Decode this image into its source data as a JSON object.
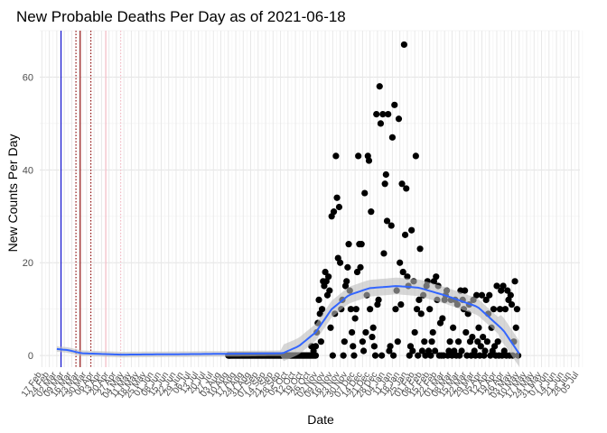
{
  "chart_data": {
    "type": "scatter",
    "title": "New Probable Deaths Per Day as of 2021-06-18",
    "xlabel": "Date",
    "ylabel": "New Counts Per Day",
    "xlim": [
      "2020-02-15",
      "2021-07-06"
    ],
    "ylim": [
      -2.5,
      70
    ],
    "y_ticks": [
      0,
      20,
      40,
      60
    ],
    "grid": true,
    "x_tick_labels": [
      "17 Feb",
      "24 Feb",
      "02 Mar",
      "09 Mar",
      "16 Mar",
      "23 Mar",
      "30 Mar",
      "06 Apr",
      "13 Apr",
      "20 Apr",
      "27 Apr",
      "04 May",
      "11 May",
      "18 May",
      "25 May",
      "01 Jun",
      "08 Jun",
      "15 Jun",
      "22 Jun",
      "29 Jun",
      "06 Jul",
      "13 Jul",
      "20 Jul",
      "27 Jul",
      "03 Aug",
      "10 Aug",
      "17 Aug",
      "24 Aug",
      "31 Aug",
      "07 Sep",
      "14 Sep",
      "21 Sep",
      "28 Sep",
      "05 Oct",
      "12 Oct",
      "19 Oct",
      "26 Oct",
      "02 Nov",
      "09 Nov",
      "16 Nov",
      "23 Nov",
      "30 Nov",
      "07 Dec",
      "14 Dec",
      "21 Dec",
      "28 Dec",
      "04 Jan",
      "11 Jan",
      "18 Jan",
      "25 Jan",
      "01 Feb",
      "08 Feb",
      "15 Feb",
      "22 Feb",
      "01 Mar",
      "08 Mar",
      "15 Mar",
      "22 Mar",
      "29 Mar",
      "05 Apr",
      "12 Apr",
      "19 Apr",
      "26 Apr",
      "03 May",
      "10 May",
      "17 May",
      "24 May",
      "31 May",
      "07 Jun",
      "14 Jun",
      "21 Jun",
      "28 Jun",
      "05 Jul"
    ],
    "vertical_lines": [
      {
        "date": "2020-03-06",
        "color": "#0000cc",
        "style": "solid"
      },
      {
        "date": "2020-03-20",
        "color": "#8b0000",
        "style": "dotted"
      },
      {
        "date": "2020-03-24",
        "color": "#8b0000",
        "style": "solid"
      },
      {
        "date": "2020-04-03",
        "color": "#8b0000",
        "style": "dotted"
      },
      {
        "date": "2020-04-17",
        "color": "#f4b6c2",
        "style": "solid"
      },
      {
        "date": "2020-05-01",
        "color": "#f4b6c2",
        "style": "dotted"
      }
    ],
    "point_color": "#000000",
    "smooth_color": "#3366ff",
    "band_color": "#bdbdbd",
    "points_early": {
      "start": "2020-08-10",
      "end": "2020-10-31",
      "value": 0
    },
    "points": [
      [
        "2020-10-27",
        2
      ],
      [
        "2020-10-29",
        1
      ],
      [
        "2020-10-31",
        2
      ],
      [
        "2020-11-01",
        5
      ],
      [
        "2020-11-02",
        7
      ],
      [
        "2020-11-03",
        12
      ],
      [
        "2020-11-04",
        9
      ],
      [
        "2020-11-05",
        3
      ],
      [
        "2020-11-06",
        10
      ],
      [
        "2020-11-07",
        16
      ],
      [
        "2020-11-08",
        15
      ],
      [
        "2020-11-09",
        18
      ],
      [
        "2020-11-10",
        16
      ],
      [
        "2020-11-11",
        13
      ],
      [
        "2020-11-12",
        17
      ],
      [
        "2020-11-13",
        14
      ],
      [
        "2020-11-14",
        6
      ],
      [
        "2020-11-15",
        30
      ],
      [
        "2020-11-16",
        0
      ],
      [
        "2020-11-17",
        31
      ],
      [
        "2020-11-18",
        9
      ],
      [
        "2020-11-19",
        43
      ],
      [
        "2020-11-20",
        34
      ],
      [
        "2020-11-21",
        21
      ],
      [
        "2020-11-22",
        32
      ],
      [
        "2020-11-23",
        20
      ],
      [
        "2020-11-24",
        10
      ],
      [
        "2020-11-25",
        12
      ],
      [
        "2020-11-26",
        0
      ],
      [
        "2020-11-27",
        3
      ],
      [
        "2020-11-28",
        15
      ],
      [
        "2020-11-29",
        16
      ],
      [
        "2020-11-30",
        19
      ],
      [
        "2020-12-01",
        24
      ],
      [
        "2020-12-02",
        14
      ],
      [
        "2020-12-03",
        10
      ],
      [
        "2020-12-04",
        5
      ],
      [
        "2020-12-05",
        2
      ],
      [
        "2020-12-06",
        0
      ],
      [
        "2020-12-07",
        8
      ],
      [
        "2020-12-08",
        10
      ],
      [
        "2020-12-09",
        18
      ],
      [
        "2020-12-10",
        43
      ],
      [
        "2020-12-11",
        24
      ],
      [
        "2020-12-12",
        19
      ],
      [
        "2020-12-13",
        24
      ],
      [
        "2020-12-14",
        3
      ],
      [
        "2020-12-15",
        1
      ],
      [
        "2020-12-16",
        35
      ],
      [
        "2020-12-17",
        5
      ],
      [
        "2020-12-18",
        13
      ],
      [
        "2020-12-19",
        43
      ],
      [
        "2020-12-20",
        42
      ],
      [
        "2020-12-21",
        10
      ],
      [
        "2020-12-22",
        31
      ],
      [
        "2020-12-23",
        4
      ],
      [
        "2020-12-24",
        6
      ],
      [
        "2020-12-25",
        2
      ],
      [
        "2020-12-26",
        0
      ],
      [
        "2020-12-27",
        52
      ],
      [
        "2020-12-28",
        11
      ],
      [
        "2020-12-29",
        12
      ],
      [
        "2020-12-30",
        58
      ],
      [
        "2020-12-31",
        50
      ],
      [
        "2021-01-01",
        0
      ],
      [
        "2021-01-02",
        52
      ],
      [
        "2021-01-03",
        22
      ],
      [
        "2021-01-04",
        37
      ],
      [
        "2021-01-05",
        39
      ],
      [
        "2021-01-06",
        29
      ],
      [
        "2021-01-07",
        52
      ],
      [
        "2021-01-08",
        1
      ],
      [
        "2021-01-09",
        2
      ],
      [
        "2021-01-10",
        28
      ],
      [
        "2021-01-11",
        47
      ],
      [
        "2021-01-12",
        0
      ],
      [
        "2021-01-13",
        54
      ],
      [
        "2021-01-14",
        10
      ],
      [
        "2021-01-15",
        14
      ],
      [
        "2021-01-16",
        3
      ],
      [
        "2021-01-17",
        51
      ],
      [
        "2021-01-18",
        20
      ],
      [
        "2021-01-19",
        11
      ],
      [
        "2021-01-20",
        37
      ],
      [
        "2021-01-21",
        18
      ],
      [
        "2021-01-22",
        67
      ],
      [
        "2021-01-23",
        26
      ],
      [
        "2021-01-24",
        36
      ],
      [
        "2021-01-25",
        17
      ],
      [
        "2021-01-26",
        15
      ],
      [
        "2021-01-27",
        0
      ],
      [
        "2021-01-28",
        2
      ],
      [
        "2021-01-29",
        27
      ],
      [
        "2021-01-30",
        1
      ],
      [
        "2021-01-31",
        16
      ],
      [
        "2021-02-01",
        5
      ],
      [
        "2021-02-02",
        43
      ],
      [
        "2021-02-03",
        10
      ],
      [
        "2021-02-04",
        0
      ],
      [
        "2021-02-05",
        12
      ],
      [
        "2021-02-06",
        23
      ],
      [
        "2021-02-07",
        9
      ],
      [
        "2021-02-08",
        1
      ],
      [
        "2021-02-09",
        13
      ],
      [
        "2021-02-10",
        3
      ],
      [
        "2021-02-11",
        0
      ],
      [
        "2021-02-12",
        15
      ],
      [
        "2021-02-13",
        16
      ],
      [
        "2021-02-14",
        1
      ],
      [
        "2021-02-15",
        10
      ],
      [
        "2021-02-16",
        0
      ],
      [
        "2021-02-17",
        3
      ],
      [
        "2021-02-18",
        5
      ],
      [
        "2021-02-19",
        16
      ],
      [
        "2021-02-20",
        1
      ],
      [
        "2021-02-21",
        17
      ],
      [
        "2021-02-22",
        12
      ],
      [
        "2021-02-23",
        15
      ],
      [
        "2021-02-24",
        0
      ],
      [
        "2021-02-25",
        7
      ],
      [
        "2021-02-26",
        0
      ],
      [
        "2021-02-27",
        8
      ],
      [
        "2021-02-28",
        0
      ],
      [
        "2021-03-01",
        12
      ],
      [
        "2021-03-02",
        13
      ],
      [
        "2021-03-03",
        14
      ],
      [
        "2021-03-04",
        0
      ],
      [
        "2021-03-05",
        1
      ],
      [
        "2021-03-06",
        3
      ],
      [
        "2021-03-07",
        12
      ],
      [
        "2021-03-08",
        0
      ],
      [
        "2021-03-09",
        6
      ],
      [
        "2021-03-10",
        1
      ],
      [
        "2021-03-11",
        12
      ],
      [
        "2021-03-12",
        0
      ],
      [
        "2021-03-13",
        11
      ],
      [
        "2021-03-14",
        3
      ],
      [
        "2021-03-15",
        0
      ],
      [
        "2021-03-16",
        14
      ],
      [
        "2021-03-17",
        1
      ],
      [
        "2021-03-18",
        12
      ],
      [
        "2021-03-19",
        10
      ],
      [
        "2021-03-20",
        14
      ],
      [
        "2021-03-21",
        5
      ],
      [
        "2021-03-22",
        0
      ],
      [
        "2021-03-23",
        9
      ],
      [
        "2021-03-24",
        11
      ],
      [
        "2021-03-25",
        3
      ],
      [
        "2021-03-26",
        0
      ],
      [
        "2021-03-27",
        4
      ],
      [
        "2021-03-28",
        12
      ],
      [
        "2021-03-29",
        1
      ],
      [
        "2021-03-30",
        0
      ],
      [
        "2021-03-31",
        13
      ],
      [
        "2021-04-01",
        3
      ],
      [
        "2021-04-02",
        6
      ],
      [
        "2021-04-03",
        0
      ],
      [
        "2021-04-04",
        2
      ],
      [
        "2021-04-05",
        13
      ],
      [
        "2021-04-06",
        4
      ],
      [
        "2021-04-07",
        0
      ],
      [
        "2021-04-08",
        1
      ],
      [
        "2021-04-09",
        12
      ],
      [
        "2021-04-10",
        3
      ],
      [
        "2021-04-11",
        9
      ],
      [
        "2021-04-12",
        13
      ],
      [
        "2021-04-13",
        0
      ],
      [
        "2021-04-14",
        6
      ],
      [
        "2021-04-15",
        1
      ],
      [
        "2021-04-16",
        10
      ],
      [
        "2021-04-17",
        2
      ],
      [
        "2021-04-18",
        0
      ],
      [
        "2021-04-19",
        15
      ],
      [
        "2021-04-20",
        3
      ],
      [
        "2021-04-21",
        0
      ],
      [
        "2021-04-22",
        10
      ],
      [
        "2021-04-23",
        14
      ],
      [
        "2021-04-24",
        0
      ],
      [
        "2021-04-25",
        15
      ],
      [
        "2021-04-26",
        1
      ],
      [
        "2021-04-27",
        10
      ],
      [
        "2021-04-28",
        0
      ],
      [
        "2021-04-29",
        14
      ],
      [
        "2021-04-30",
        12
      ],
      [
        "2021-05-01",
        0
      ],
      [
        "2021-05-02",
        13
      ],
      [
        "2021-05-03",
        11
      ],
      [
        "2021-05-04",
        0
      ],
      [
        "2021-05-05",
        3
      ],
      [
        "2021-05-06",
        16
      ],
      [
        "2021-05-07",
        6
      ],
      [
        "2021-05-08",
        10
      ],
      [
        "2021-05-09",
        0
      ]
    ]
  }
}
